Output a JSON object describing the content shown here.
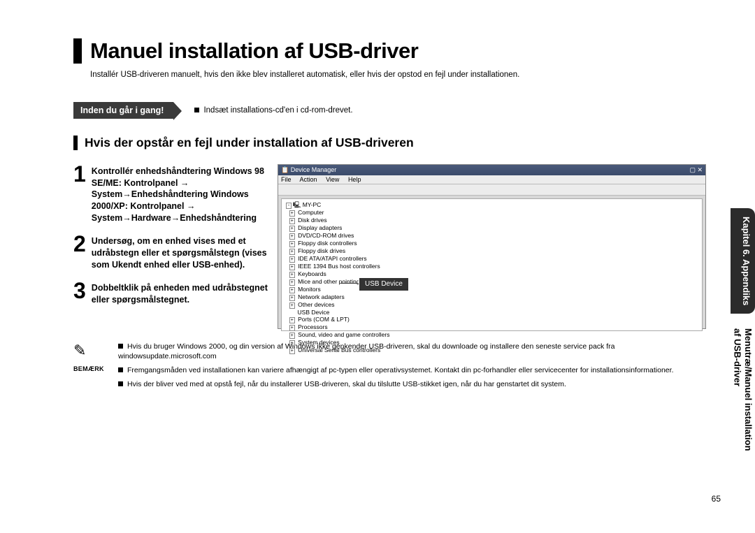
{
  "title": "Manuel installation af USB-driver",
  "intro": "Installér USB-driveren manuelt, hvis den ikke blev installeret automatisk, eller hvis der opstod en fejl under installationen.",
  "before_label": "Inden du går i gang!",
  "before_text": "Indsæt installations-cd'en i cd-rom-drevet.",
  "section_heading": "Hvis der opstår en fejl under installation af USB-driveren",
  "steps": [
    {
      "num": "1",
      "lines": "Kontrollér enhedshåndtering\nWindows 98 SE/ME: Kontrolpanel → System→Enhedshåndtering\nWindows 2000/XP: Kontrolpanel → System→Hardware→Enhedshåndtering"
    },
    {
      "num": "2",
      "lines": "Undersøg, om en enhed vises med et udråbstegn eller et spørgsmålstegn (vises som Ukendt enhed eller USB-enhed)."
    },
    {
      "num": "3",
      "lines": "Dobbeltklik på enheden med udråbstegnet eller spørgsmålstegnet."
    }
  ],
  "screenshot": {
    "window_title": "Device Manager",
    "menu": [
      "File",
      "Action",
      "View",
      "Help"
    ],
    "tree_root": "MY-PC",
    "tree": [
      "Computer",
      "Disk drives",
      "Display adapters",
      "DVD/CD-ROM drives",
      "Floppy disk controllers",
      "Floppy disk drives",
      "IDE ATA/ATAPI controllers",
      "IEEE 1394 Bus host controllers",
      "Keyboards",
      "Mice and other pointing devices",
      "Monitors",
      "Network adapters",
      "Other devices",
      "  USB Device",
      "Ports (COM & LPT)",
      "Processors",
      "Sound, video and game controllers",
      "System devices",
      "Universal Serial Bus controllers"
    ],
    "callout": "USB Device"
  },
  "notes_label": "BEMÆRK",
  "notes": [
    "Hvis du bruger Windows 2000, og din version af Windows ikke genkender USB-driveren, skal du downloade og installere den seneste service pack fra windowsupdate.microsoft.com",
    "Fremgangsmåden ved installationen kan variere afhængigt af pc-typen eller operativsystemet. Kontakt din pc-forhandler eller servicecenter for installationsinformationer.",
    "Hvis der bliver ved med at opstå fejl, når du installerer USB-driveren, skal du tilslutte USB-stikket igen, når du har genstartet dit system."
  ],
  "side_tab_dark": "Kapitel 6. Appendiks",
  "side_tab_light_line1": "Menutræ/Manuel installation",
  "side_tab_light_line2": "af USB-driver",
  "page_number": "65",
  "colors": {
    "tag_bg": "#3a3a3a",
    "side_dark_bg": "#2b2b2b",
    "text": "#000000"
  }
}
